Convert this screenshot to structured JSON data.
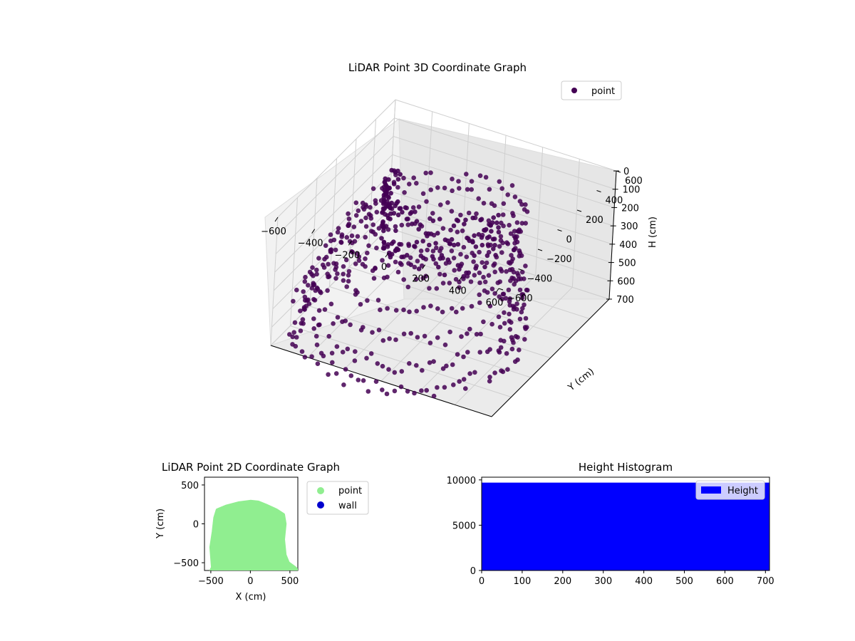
{
  "chart_data": [
    {
      "type": "scatter3d",
      "title": "LiDAR Point 3D Coordinate Graph",
      "xlabel": "",
      "ylabel": "Y (cm)",
      "zlabel": "H (cm)",
      "xlim": [
        -600,
        600
      ],
      "ylim": [
        -600,
        600
      ],
      "zlim": [
        0,
        700
      ],
      "z_inverted": true,
      "x_ticks": [
        "−600",
        "−400",
        "−200",
        "0",
        "200",
        "400",
        "600"
      ],
      "y_ticks": [
        "−600",
        "−400",
        "−200",
        "0",
        "200",
        "400",
        "600"
      ],
      "z_ticks": [
        "0",
        "100",
        "200",
        "300",
        "400",
        "500",
        "600",
        "700"
      ],
      "grid": true,
      "legend": {
        "placement": "top-right",
        "entries": [
          {
            "label": "point",
            "color": "#440154"
          }
        ]
      },
      "series": [
        {
          "name": "point",
          "color": "#440154",
          "description_points": "dense ring/cylinder shaped cloud",
          "rings": [
            {
              "h": 120,
              "r": 380,
              "cx": 0,
              "cy": 0
            },
            {
              "h": 220,
              "r": 420,
              "cx": -40,
              "cy": -40
            },
            {
              "h": 330,
              "r": 460,
              "cx": -60,
              "cy": -80
            },
            {
              "h": 450,
              "r": 500,
              "cx": -80,
              "cy": -120
            },
            {
              "h": 560,
              "r": 520,
              "cx": -80,
              "cy": -150
            },
            {
              "h": 660,
              "r": 540,
              "cx": -80,
              "cy": -180
            }
          ]
        }
      ]
    },
    {
      "type": "scatter",
      "title": "LiDAR Point 2D Coordinate Graph",
      "xlabel": "X (cm)",
      "ylabel": "Y (cm)",
      "xlim": [
        -580,
        600
      ],
      "ylim": [
        -600,
        600
      ],
      "x_ticks": [
        "−500",
        "0",
        "500"
      ],
      "y_ticks": [
        "−500",
        "0",
        "500"
      ],
      "legend": {
        "placement": "outside-right",
        "entries": [
          {
            "label": "point",
            "color": "#90ee90"
          },
          {
            "label": "wall",
            "color": "#0000cd"
          }
        ]
      },
      "shape_outline": [
        [
          -480,
          -560
        ],
        [
          -500,
          -300
        ],
        [
          -470,
          -100
        ],
        [
          -450,
          80
        ],
        [
          -420,
          180
        ],
        [
          -300,
          230
        ],
        [
          -150,
          270
        ],
        [
          0,
          290
        ],
        [
          100,
          280
        ],
        [
          200,
          240
        ],
        [
          330,
          180
        ],
        [
          420,
          120
        ],
        [
          440,
          0
        ],
        [
          420,
          -200
        ],
        [
          440,
          -400
        ],
        [
          480,
          -500
        ],
        [
          560,
          -560
        ],
        [
          600,
          -600
        ],
        [
          -500,
          -600
        ]
      ]
    },
    {
      "type": "bar",
      "title": "Height Histogram",
      "xlim": [
        0,
        710
      ],
      "ylim": [
        0,
        10300
      ],
      "x_ticks": [
        "0",
        "100",
        "200",
        "300",
        "400",
        "500",
        "600",
        "700"
      ],
      "y_ticks": [
        "0",
        "5000",
        "10000"
      ],
      "legend": {
        "placement": "top-right",
        "entries": [
          {
            "label": "Height",
            "color": "#0000ff"
          }
        ]
      },
      "series": [
        {
          "name": "Height",
          "color": "#0000ff",
          "x_range": [
            0,
            710
          ],
          "value": 9700
        }
      ]
    }
  ]
}
